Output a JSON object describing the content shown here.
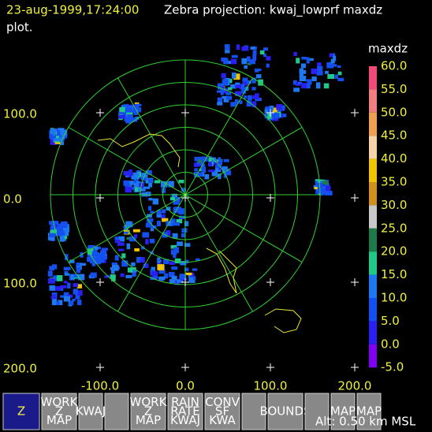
{
  "header": {
    "time": "23-aug-1999,17:24:00",
    "title": "Zebra projection: kwaj_lowprf maxdz",
    "subtitle": "plot."
  },
  "axes": {
    "y_labels": [
      "100.0",
      "0.0",
      "100.0",
      "200.0"
    ],
    "x_labels": [
      "-100.0",
      "0.0",
      "100.0",
      "200.0"
    ]
  },
  "colorbar": {
    "title": "maxdz",
    "labels": [
      "60.0",
      "55.0",
      "50.0",
      "45.0",
      "40.0",
      "35.0",
      "30.0",
      "25.0",
      "20.0",
      "15.0",
      "10.0",
      "5.0",
      "0.0",
      "-5.0"
    ],
    "colors": [
      "#f04a78",
      "#f08080",
      "#f0a050",
      "#f5d2a8",
      "#f0c400",
      "#d09020",
      "#c8c8c8",
      "#1e7a4a",
      "#20c88a",
      "#1e78f0",
      "#1450f0",
      "#2a20f0",
      "#8000f0"
    ]
  },
  "toolbar": [
    [
      "Z"
    ],
    [
      "WORK",
      "Z",
      "MAP"
    ],
    [
      "KWAJ"
    ],
    [
      ""
    ],
    [
      "WORK",
      "Z",
      "MAP"
    ],
    [
      "RAIN",
      "RATE",
      "KWAJ"
    ],
    [
      "CONV",
      "SF",
      "KWA"
    ],
    [
      ""
    ],
    [
      "BOUNDS"
    ],
    [
      ""
    ],
    [
      "MAP"
    ],
    [
      "MAP"
    ]
  ],
  "status": "Alt: 0.50 km MSL"
}
